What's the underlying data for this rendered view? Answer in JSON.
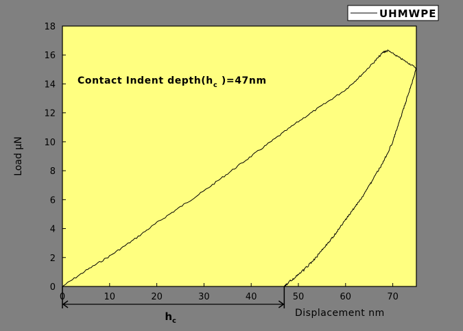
{
  "chart_data": {
    "type": "line",
    "title": "",
    "xlabel": "Displacement nm",
    "ylabel": "Load µN",
    "xlim": [
      0,
      75
    ],
    "ylim": [
      0,
      18
    ],
    "x_ticks": [
      0,
      10,
      20,
      30,
      40,
      50,
      60,
      70
    ],
    "y_ticks": [
      0,
      2,
      4,
      6,
      8,
      10,
      12,
      14,
      16,
      18
    ],
    "grid": false,
    "legend": {
      "position": "top-right",
      "entries": [
        "UHMWPE"
      ]
    },
    "colors": {
      "plot_background": "#FFFF80",
      "figure_background": "#808080",
      "line": "#000000"
    },
    "annotation": {
      "text": "Contact Indent depth(h",
      "sub": "c",
      "suffix": " )=47nm"
    },
    "hc_marker": {
      "label": "h",
      "sub": "c",
      "from": 0,
      "to": 47
    },
    "series": [
      {
        "name": "UHMWPE",
        "loading": {
          "x": [
            0,
            5,
            10,
            15,
            20,
            25,
            30,
            35,
            40,
            45,
            50,
            55,
            60,
            63,
            66,
            68,
            69
          ],
          "y": [
            0.0,
            1.1,
            2.1,
            3.2,
            4.4,
            5.5,
            6.6,
            7.8,
            9.0,
            10.2,
            11.4,
            12.5,
            13.6,
            14.5,
            15.5,
            16.2,
            16.3
          ]
        },
        "hold": {
          "x": [
            69,
            71,
            73,
            75
          ],
          "y": [
            16.3,
            15.9,
            15.5,
            15.1
          ]
        },
        "unloading": {
          "x": [
            75,
            74,
            73,
            72,
            71,
            70,
            68,
            66,
            64,
            62,
            60,
            58,
            56,
            54,
            52,
            50,
            48,
            47
          ],
          "y": [
            15.1,
            14.0,
            13.0,
            12.0,
            11.0,
            10.0,
            8.6,
            7.5,
            6.4,
            5.5,
            4.6,
            3.7,
            2.9,
            2.1,
            1.4,
            0.8,
            0.3,
            0.0
          ]
        }
      }
    ]
  }
}
